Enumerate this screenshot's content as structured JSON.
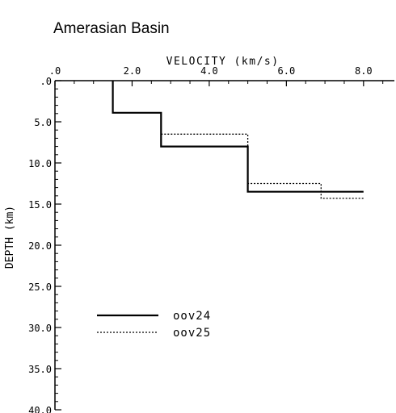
{
  "title": "Amerasian Basin",
  "chart_data": {
    "type": "line",
    "title": "Amerasian Basin",
    "xlabel": "VELOCITY (km/s)",
    "ylabel": "DEPTH (km)",
    "xlim": [
      0,
      8.8
    ],
    "ylim": [
      40,
      0
    ],
    "x_axis_position": "top",
    "x_ticks": [
      0,
      2,
      4,
      6,
      8
    ],
    "x_tick_labels": [
      ".0",
      "2.0",
      "4.0",
      "6.0",
      "8.0"
    ],
    "y_ticks": [
      0,
      5,
      10,
      15,
      20,
      25,
      30,
      35,
      40
    ],
    "y_tick_labels": [
      ".0",
      "5.0",
      "10.0",
      "15.0",
      "20.0",
      "25.0",
      "30.0",
      "35.0",
      "40.0"
    ],
    "grid": false,
    "legend_position": "lower-left",
    "series": [
      {
        "name": "oov24",
        "style": "solid",
        "points": [
          [
            1.5,
            0
          ],
          [
            1.5,
            3.9
          ],
          [
            2.75,
            3.9
          ],
          [
            2.75,
            8.0
          ],
          [
            5.0,
            8.0
          ],
          [
            5.0,
            13.5
          ],
          [
            8.0,
            13.5
          ]
        ]
      },
      {
        "name": "oov25",
        "style": "dotted",
        "points": [
          [
            2.75,
            6.5
          ],
          [
            5.0,
            6.5
          ],
          [
            5.0,
            12.5
          ],
          [
            6.9,
            12.5
          ],
          [
            6.9,
            14.3
          ],
          [
            8.0,
            14.3
          ]
        ]
      }
    ]
  }
}
